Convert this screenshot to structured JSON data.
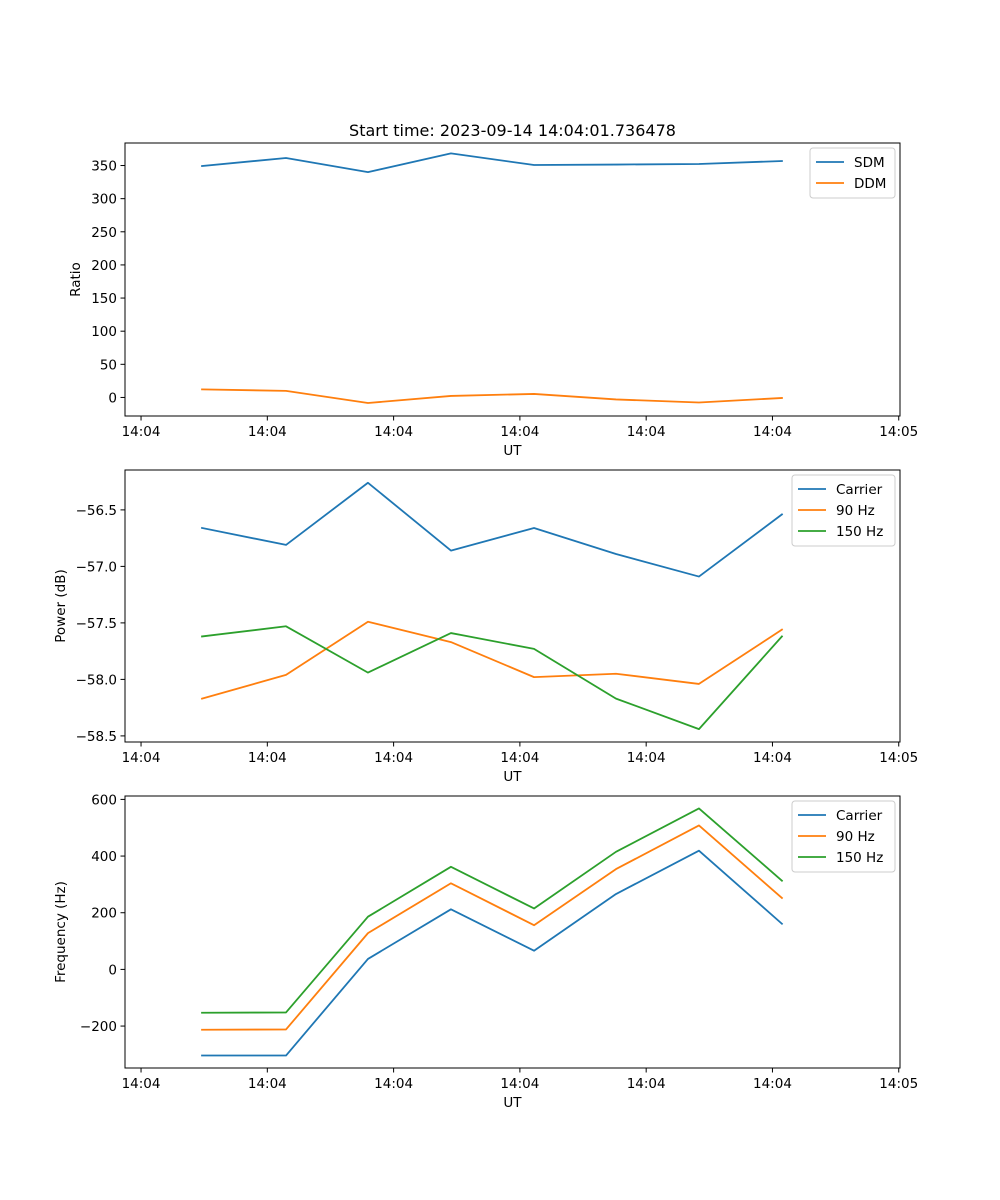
{
  "figure": {
    "title": "Start time: 2023-09-14 14:04:01.736478"
  },
  "chart_data": [
    {
      "type": "line",
      "title": "Start time: 2023-09-14 14:04:01.736478",
      "xlabel": "UT",
      "ylabel": "Ratio",
      "x_unit": "tick-index (evenly spaced time ticks)",
      "x": [
        0.483,
        1.148,
        1.797,
        2.454,
        3.112,
        3.761,
        4.418,
        5.075
      ],
      "xlim": [
        -0.127,
        6.01
      ],
      "x_ticks": [
        0,
        1,
        2,
        3,
        4,
        5,
        6
      ],
      "x_tick_labels": [
        "14:04",
        "14:04",
        "14:04",
        "14:04",
        "14:04",
        "14:04",
        "14:05"
      ],
      "ylim": [
        -28,
        384
      ],
      "y_ticks": [
        0,
        50,
        100,
        150,
        200,
        250,
        300,
        350
      ],
      "y_tick_labels": [
        "0",
        "50",
        "100",
        "150",
        "200",
        "250",
        "300",
        "350"
      ],
      "grid": false,
      "legend_position": "top-right",
      "series": [
        {
          "name": "SDM",
          "color": "#1f77b4",
          "values": [
            349.2,
            361.4,
            340.1,
            368.3,
            350.8,
            351.5,
            352.3,
            356.8
          ]
        },
        {
          "name": "DDM",
          "color": "#ff7f0e",
          "values": [
            12.2,
            9.9,
            -8.4,
            2.3,
            5.3,
            -3.0,
            -7.6,
            -0.8
          ]
        }
      ]
    },
    {
      "type": "line",
      "title": "",
      "xlabel": "UT",
      "ylabel": "Power (dB)",
      "x_unit": "tick-index (evenly spaced time ticks)",
      "x": [
        0.483,
        1.148,
        1.797,
        2.454,
        3.112,
        3.761,
        4.418,
        5.075
      ],
      "xlim": [
        -0.127,
        6.01
      ],
      "x_ticks": [
        0,
        1,
        2,
        3,
        4,
        5,
        6
      ],
      "x_tick_labels": [
        "14:04",
        "14:04",
        "14:04",
        "14:04",
        "14:04",
        "14:04",
        "14:05"
      ],
      "ylim": [
        -58.554,
        -56.147
      ],
      "y_ticks": [
        -58.5,
        -58.0,
        -57.5,
        -57.0,
        -56.5
      ],
      "y_tick_labels": [
        "−58.5",
        "−58.0",
        "−57.5",
        "−57.0",
        "−56.5"
      ],
      "grid": false,
      "legend_position": "top-right",
      "series": [
        {
          "name": "Carrier",
          "color": "#1f77b4",
          "values": [
            -56.66,
            -56.81,
            -56.26,
            -56.86,
            -56.66,
            -56.89,
            -57.09,
            -56.54
          ]
        },
        {
          "name": "90 Hz",
          "color": "#ff7f0e",
          "values": [
            -58.17,
            -57.96,
            -57.49,
            -57.67,
            -57.98,
            -57.95,
            -58.04,
            -57.56
          ]
        },
        {
          "name": "150 Hz",
          "color": "#2ca02c",
          "values": [
            -57.62,
            -57.53,
            -57.94,
            -57.59,
            -57.73,
            -58.17,
            -58.44,
            -57.62
          ]
        }
      ]
    },
    {
      "type": "line",
      "title": "",
      "xlabel": "UT",
      "ylabel": "Frequency (Hz)",
      "x_unit": "tick-index (evenly spaced time ticks)",
      "x": [
        0.483,
        1.148,
        1.797,
        2.454,
        3.112,
        3.761,
        4.418,
        5.075
      ],
      "xlim": [
        -0.127,
        6.01
      ],
      "x_ticks": [
        0,
        1,
        2,
        3,
        4,
        5,
        6
      ],
      "x_tick_labels": [
        "14:04",
        "14:04",
        "14:04",
        "14:04",
        "14:04",
        "14:04",
        "14:05"
      ],
      "ylim": [
        -348,
        612
      ],
      "y_ticks": [
        -200,
        0,
        200,
        400,
        600
      ],
      "y_tick_labels": [
        "−200",
        "0",
        "200",
        "400",
        "600"
      ],
      "grid": false,
      "legend_position": "top-right",
      "series": [
        {
          "name": "Carrier",
          "color": "#1f77b4",
          "values": [
            -304,
            -304,
            37,
            212,
            66,
            266,
            419,
            161
          ]
        },
        {
          "name": "90 Hz",
          "color": "#ff7f0e",
          "values": [
            -213,
            -212,
            128,
            304,
            156,
            354,
            508,
            252
          ]
        },
        {
          "name": "150 Hz",
          "color": "#2ca02c",
          "values": [
            -153,
            -152,
            186,
            362,
            215,
            415,
            568,
            313
          ]
        }
      ]
    }
  ]
}
